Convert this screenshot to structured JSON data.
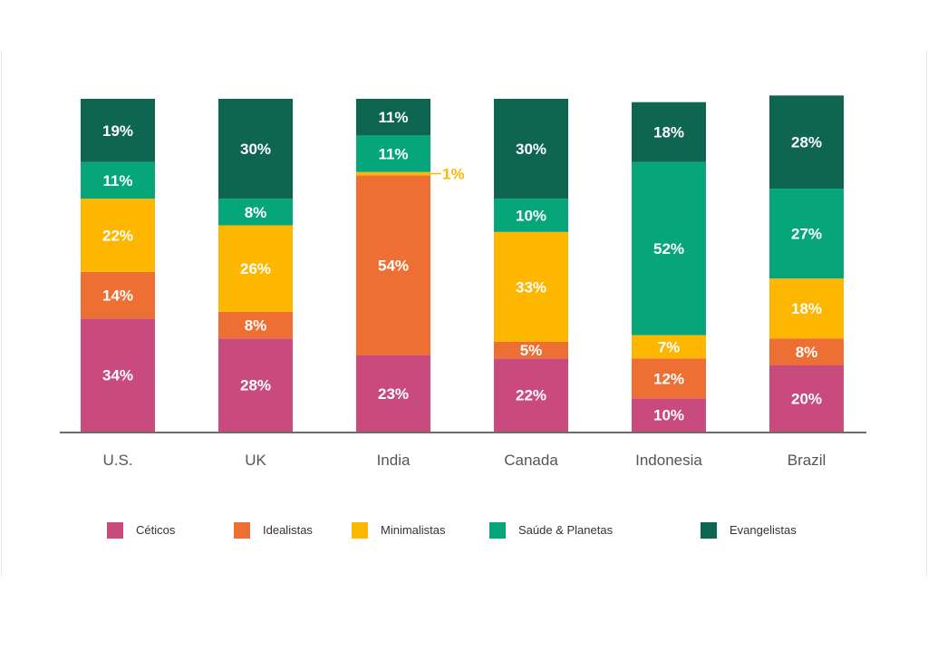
{
  "chart_data": {
    "type": "bar",
    "stacked": true,
    "categories": [
      "U.S.",
      "UK",
      "India",
      "Canada",
      "Indonesia",
      "Brazil"
    ],
    "series": [
      {
        "name": "Céticos",
        "color": "#c94a7c",
        "values": [
          34,
          28,
          23,
          22,
          10,
          20
        ],
        "labels": [
          "34%",
          "28%",
          "23%",
          "22%",
          "10%",
          "20%"
        ]
      },
      {
        "name": "Idealistas",
        "color": "#ee6f33",
        "values": [
          14,
          8,
          54,
          5,
          12,
          8
        ],
        "labels": [
          "14%",
          "8%",
          "54%",
          "5%",
          "12%",
          "8%"
        ]
      },
      {
        "name": "Minimalistas",
        "color": "#fdb700",
        "values": [
          22,
          26,
          1,
          33,
          7,
          18
        ],
        "labels": [
          "22%",
          "26%",
          "1%",
          "33%",
          "7%",
          "18%"
        ]
      },
      {
        "name": "Saúde & Planetas",
        "color": "#06a67a",
        "values": [
          11,
          8,
          11,
          10,
          52,
          27
        ],
        "labels": [
          "11%",
          "8%",
          "11%",
          "10%",
          "52%",
          "27%"
        ]
      },
      {
        "name": "Evangelistas",
        "color": "#0e6650",
        "values": [
          19,
          30,
          11,
          30,
          18,
          28
        ],
        "labels": [
          "19%",
          "30%",
          "11%",
          "30%",
          "18%",
          "28%"
        ]
      }
    ],
    "ylim": [
      0,
      100
    ],
    "grid": false,
    "legend_position": "bottom",
    "external_label_color": "#fdb700"
  }
}
